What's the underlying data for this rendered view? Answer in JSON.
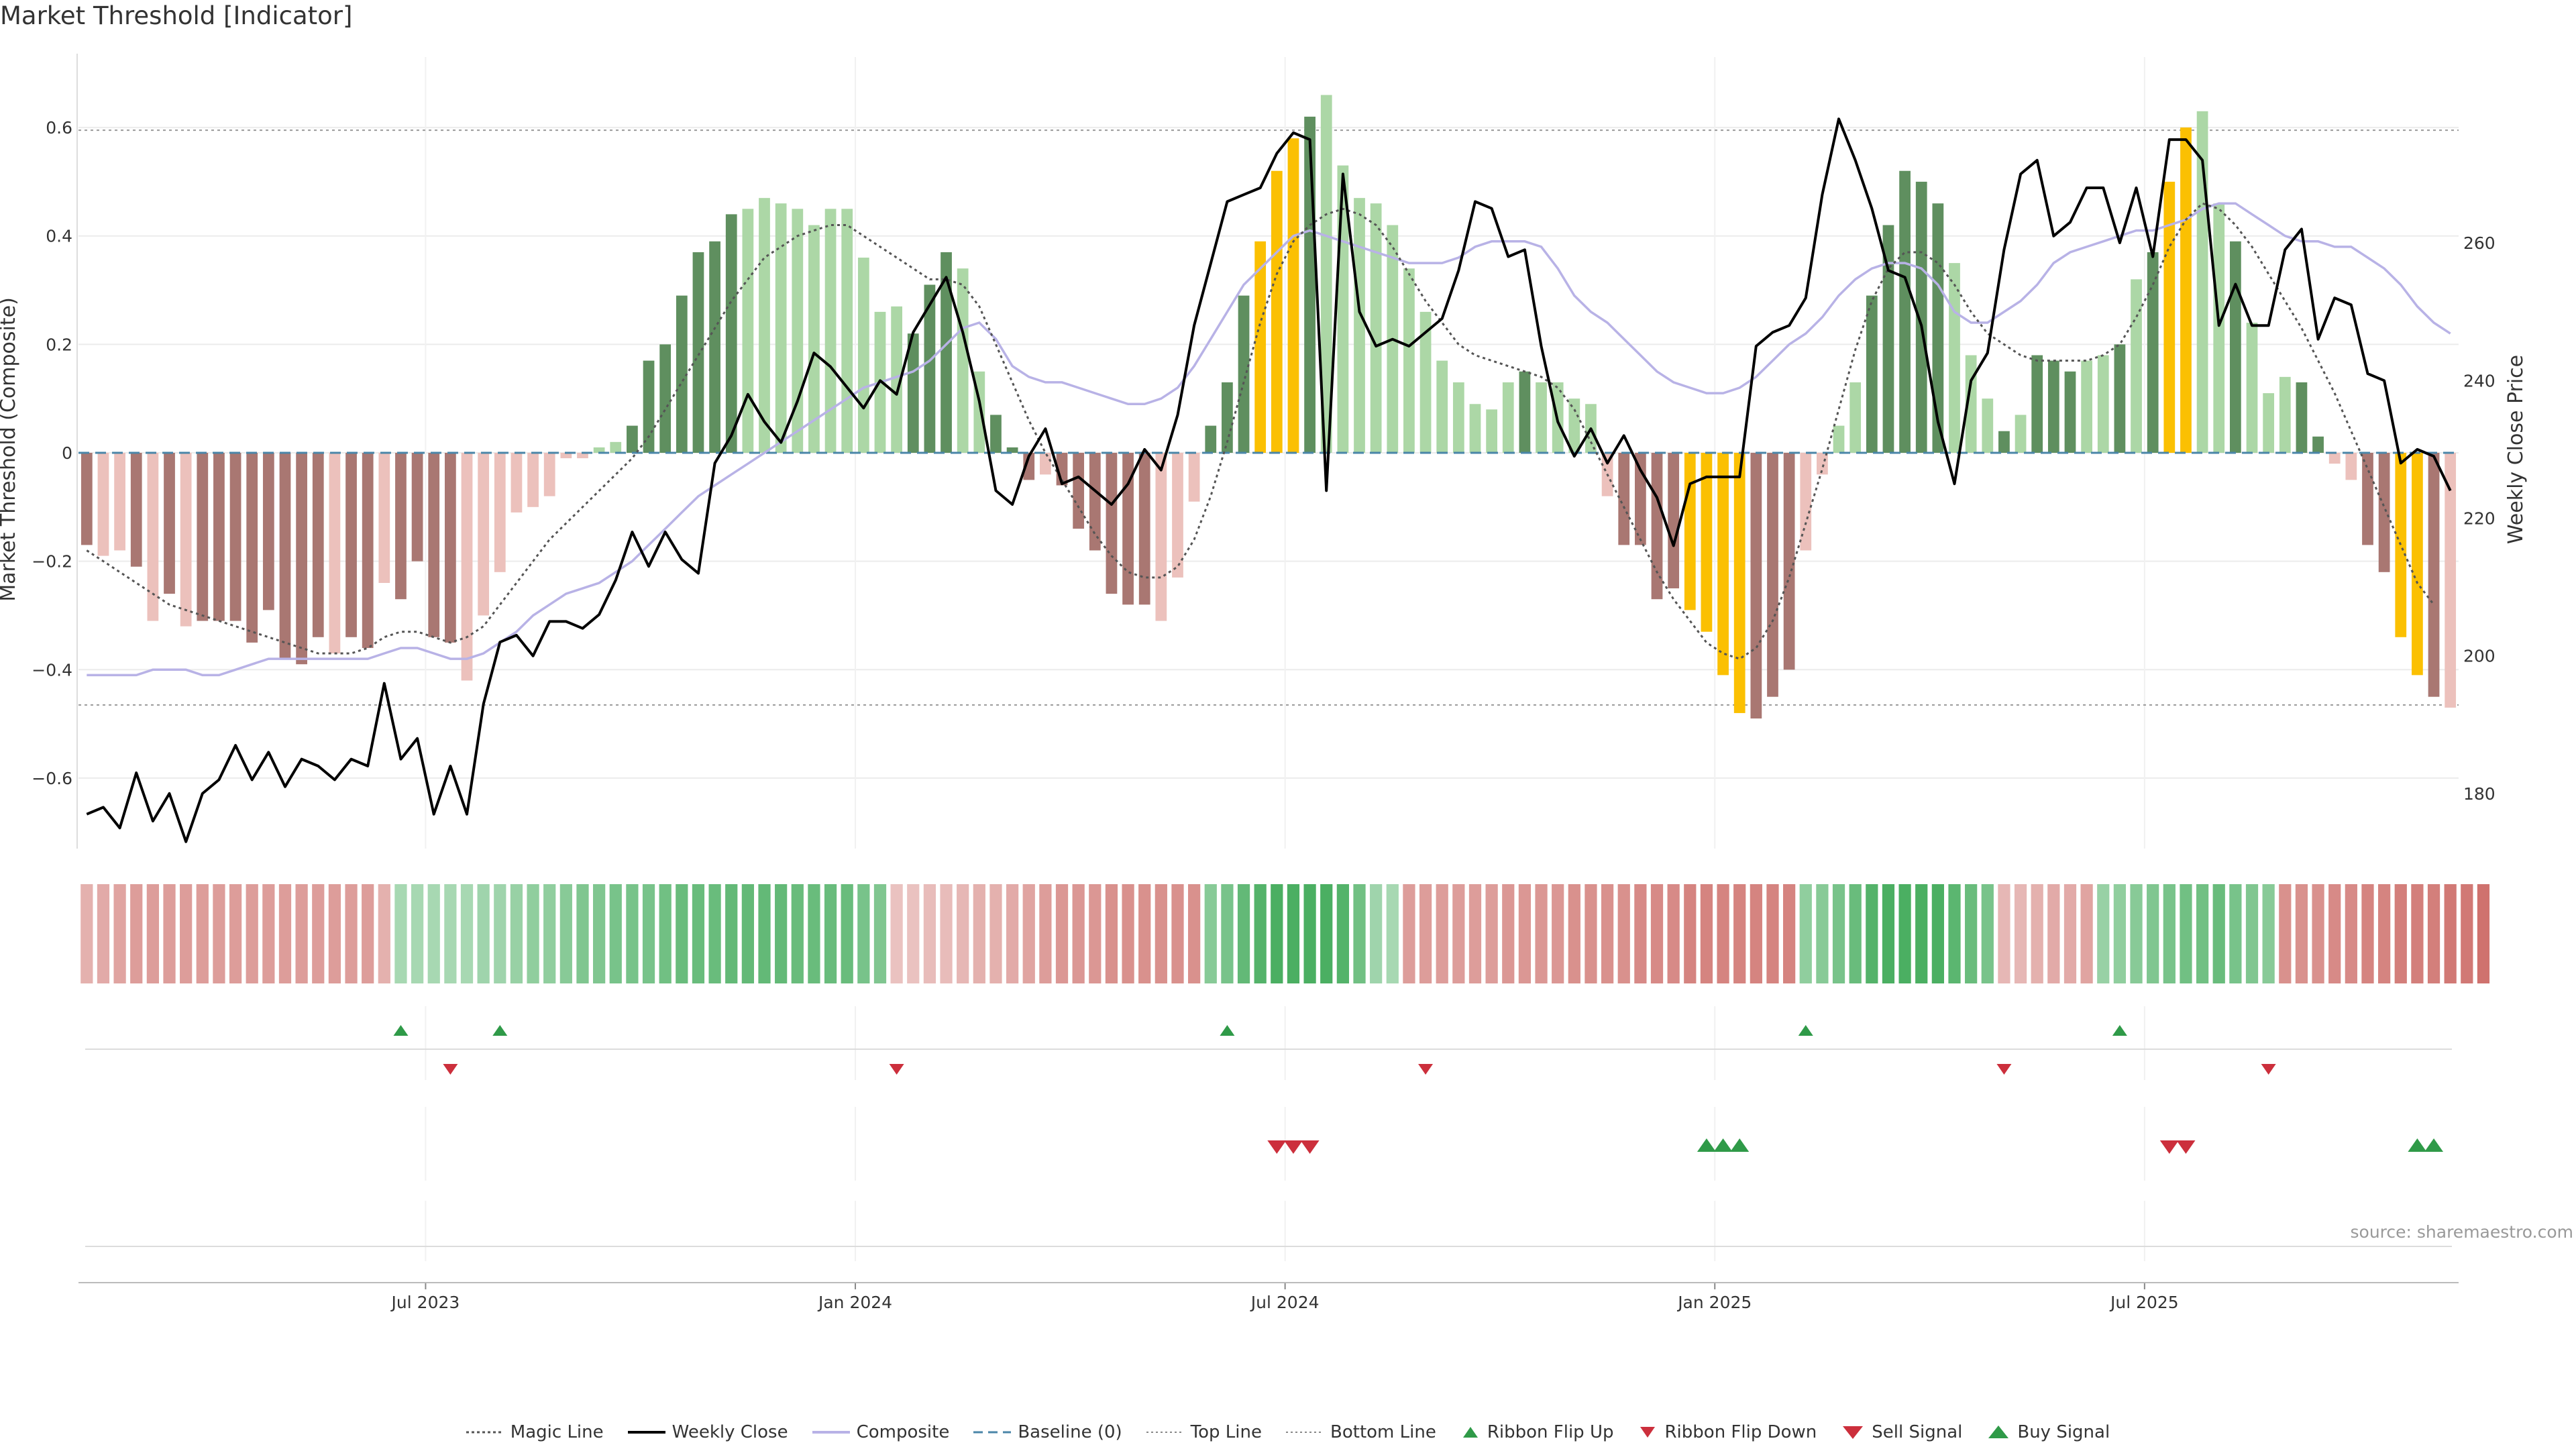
{
  "title": "Market Threshold [Indicator]",
  "source": "source: sharemaestro.com",
  "colors": {
    "gain_dark": "#5f8f5f",
    "gain_light": "#acd7a6",
    "loss_dark": "#a97772",
    "loss_light": "#ecc1bc",
    "extreme": "#fbc002",
    "weekly_close": "#000000",
    "composite": "#b8b2e6",
    "magic": "#555555",
    "sell": "#cc2f3c",
    "buy": "#2f9a48"
  },
  "chart_data": {
    "type": "bar",
    "title": "Market Threshold [Indicator]",
    "ylabel": "Market Threshold (Composite)",
    "y2label": "Weekly Close Price",
    "ylim": [
      -0.73,
      0.73
    ],
    "y2lim": [
      172,
      287
    ],
    "yticks": [
      "0.6",
      "0.4",
      "0.2",
      "0",
      "−0.2",
      "−0.4",
      "−0.6"
    ],
    "y2ticks": [
      "260",
      "240",
      "220",
      "200",
      "180"
    ],
    "xticks": [
      "Jul 2023",
      "Jan 2024",
      "Jul 2024",
      "Jan 2025",
      "Jul 2025"
    ],
    "xtick_weeks": [
      21,
      47,
      73,
      99,
      125
    ],
    "top_line": 0.595,
    "bottom_line": -0.465,
    "grid": true,
    "legend_position": "bottom",
    "composite_bars": [
      -0.17,
      -0.19,
      -0.18,
      -0.21,
      -0.31,
      -0.26,
      -0.32,
      -0.31,
      -0.31,
      -0.31,
      -0.35,
      -0.29,
      -0.38,
      -0.39,
      -0.34,
      -0.37,
      -0.34,
      -0.36,
      -0.24,
      -0.27,
      -0.2,
      -0.34,
      -0.35,
      -0.42,
      -0.3,
      -0.22,
      -0.11,
      -0.1,
      -0.08,
      -0.01,
      -0.01,
      0.01,
      0.02,
      0.05,
      0.17,
      0.2,
      0.29,
      0.37,
      0.39,
      0.44,
      0.45,
      0.47,
      0.46,
      0.45,
      0.42,
      0.45,
      0.45,
      0.36,
      0.26,
      0.27,
      0.22,
      0.31,
      0.37,
      0.34,
      0.15,
      0.07,
      0.01,
      -0.05,
      -0.04,
      -0.06,
      -0.14,
      -0.18,
      -0.26,
      -0.28,
      -0.28,
      -0.31,
      -0.23,
      -0.09,
      0.05,
      0.13,
      0.29,
      0.39,
      0.52,
      0.58,
      0.62,
      0.66,
      0.53,
      0.47,
      0.46,
      0.42,
      0.34,
      0.26,
      0.17,
      0.13,
      0.09,
      0.08,
      0.13,
      0.15,
      0.13,
      0.13,
      0.1,
      0.09,
      -0.08,
      -0.17,
      -0.17,
      -0.27,
      -0.25,
      -0.29,
      -0.33,
      -0.41,
      -0.48,
      -0.49,
      -0.45,
      -0.4,
      -0.18,
      -0.04,
      0.05,
      0.13,
      0.29,
      0.42,
      0.52,
      0.5,
      0.46,
      0.35,
      0.18,
      0.1,
      0.04,
      0.07,
      0.18,
      0.17,
      0.15,
      0.17,
      0.18,
      0.2,
      0.32,
      0.37,
      0.5,
      0.6,
      0.63,
      0.46,
      0.39,
      0.24,
      0.11,
      0.14,
      0.13,
      0.03,
      -0.02,
      -0.05,
      -0.17,
      -0.22,
      -0.34,
      -0.41,
      -0.45,
      -0.47
    ],
    "bar_shade": "dlldldlddddddddlddlddddlllllllllldddddddlllllllllldddlldddlddddddllldddddddlllllllllllldllllldddddddddddlllldddddllldldddlldldddlldlllddllddddd",
    "extreme_weeks": [
      71,
      72,
      73,
      97,
      98,
      99,
      100,
      126,
      127,
      140,
      141
    ],
    "weekly_close": [
      177,
      178,
      175,
      183,
      176,
      180,
      173,
      180,
      182,
      187,
      182,
      186,
      181,
      185,
      184,
      182,
      185,
      184,
      196,
      185,
      188,
      177,
      184,
      177,
      193,
      202,
      203,
      200,
      205,
      205,
      204,
      206,
      211,
      218,
      213,
      218,
      214,
      212,
      228,
      232,
      238,
      234,
      231,
      237,
      244,
      242,
      239,
      236,
      240,
      238,
      247,
      251,
      255,
      247,
      237,
      224,
      222,
      229,
      233,
      225,
      226,
      224,
      222,
      225,
      230,
      227,
      235,
      248,
      257,
      266,
      267,
      268,
      273,
      276,
      275,
      224,
      270,
      250,
      245,
      246,
      245,
      247,
      249,
      256,
      266,
      265,
      258,
      259,
      245,
      234,
      229,
      233,
      228,
      232,
      227,
      223,
      216,
      225,
      226,
      226,
      226,
      245,
      247,
      248,
      252,
      267,
      278,
      272,
      265,
      256,
      255,
      248,
      234,
      225,
      240,
      244,
      259,
      270,
      272,
      261,
      263,
      268,
      268,
      260,
      268,
      258,
      275,
      275,
      272,
      248,
      254,
      248,
      248,
      259,
      262,
      246,
      252,
      251,
      241,
      240,
      228,
      230,
      229,
      224
    ],
    "composite_line": [
      -0.41,
      -0.41,
      -0.41,
      -0.41,
      -0.4,
      -0.4,
      -0.4,
      -0.41,
      -0.41,
      -0.4,
      -0.39,
      -0.38,
      -0.38,
      -0.38,
      -0.38,
      -0.38,
      -0.38,
      -0.38,
      -0.37,
      -0.36,
      -0.36,
      -0.37,
      -0.38,
      -0.38,
      -0.37,
      -0.35,
      -0.33,
      -0.3,
      -0.28,
      -0.26,
      -0.25,
      -0.24,
      -0.22,
      -0.2,
      -0.17,
      -0.14,
      -0.11,
      -0.08,
      -0.06,
      -0.04,
      -0.02,
      0.0,
      0.02,
      0.04,
      0.06,
      0.08,
      0.1,
      0.12,
      0.13,
      0.14,
      0.15,
      0.17,
      0.2,
      0.23,
      0.24,
      0.21,
      0.16,
      0.14,
      0.13,
      0.13,
      0.12,
      0.11,
      0.1,
      0.09,
      0.09,
      0.1,
      0.12,
      0.16,
      0.21,
      0.26,
      0.31,
      0.34,
      0.37,
      0.4,
      0.41,
      0.4,
      0.39,
      0.38,
      0.37,
      0.36,
      0.35,
      0.35,
      0.35,
      0.36,
      0.38,
      0.39,
      0.39,
      0.39,
      0.38,
      0.34,
      0.29,
      0.26,
      0.24,
      0.21,
      0.18,
      0.15,
      0.13,
      0.12,
      0.11,
      0.11,
      0.12,
      0.14,
      0.17,
      0.2,
      0.22,
      0.25,
      0.29,
      0.32,
      0.34,
      0.35,
      0.35,
      0.34,
      0.31,
      0.26,
      0.24,
      0.24,
      0.26,
      0.28,
      0.31,
      0.35,
      0.37,
      0.38,
      0.39,
      0.4,
      0.41,
      0.41,
      0.42,
      0.43,
      0.45,
      0.46,
      0.46,
      0.44,
      0.42,
      0.4,
      0.39,
      0.39,
      0.38,
      0.38,
      0.36,
      0.34,
      0.31,
      0.27,
      0.24,
      0.22
    ],
    "magic_line": [
      -0.18,
      -0.2,
      -0.22,
      -0.24,
      -0.26,
      -0.28,
      -0.29,
      -0.3,
      -0.31,
      -0.32,
      -0.33,
      -0.34,
      -0.35,
      -0.36,
      -0.37,
      -0.37,
      -0.37,
      -0.36,
      -0.34,
      -0.33,
      -0.33,
      -0.34,
      -0.35,
      -0.34,
      -0.32,
      -0.28,
      -0.24,
      -0.2,
      -0.16,
      -0.13,
      -0.1,
      -0.07,
      -0.04,
      -0.01,
      0.03,
      0.08,
      0.13,
      0.18,
      0.23,
      0.28,
      0.32,
      0.36,
      0.38,
      0.4,
      0.41,
      0.42,
      0.42,
      0.4,
      0.38,
      0.36,
      0.34,
      0.32,
      0.32,
      0.31,
      0.27,
      0.2,
      0.13,
      0.06,
      0.0,
      -0.05,
      -0.1,
      -0.15,
      -0.19,
      -0.22,
      -0.23,
      -0.23,
      -0.21,
      -0.16,
      -0.08,
      0.02,
      0.13,
      0.24,
      0.33,
      0.39,
      0.42,
      0.44,
      0.45,
      0.44,
      0.42,
      0.38,
      0.33,
      0.28,
      0.24,
      0.2,
      0.18,
      0.17,
      0.16,
      0.15,
      0.14,
      0.12,
      0.08,
      0.02,
      -0.04,
      -0.1,
      -0.16,
      -0.22,
      -0.27,
      -0.31,
      -0.35,
      -0.37,
      -0.38,
      -0.36,
      -0.31,
      -0.23,
      -0.13,
      -0.03,
      0.08,
      0.19,
      0.28,
      0.34,
      0.37,
      0.37,
      0.35,
      0.31,
      0.26,
      0.22,
      0.2,
      0.18,
      0.17,
      0.17,
      0.17,
      0.17,
      0.18,
      0.2,
      0.25,
      0.31,
      0.38,
      0.43,
      0.46,
      0.45,
      0.42,
      0.38,
      0.33,
      0.28,
      0.23,
      0.17,
      0.11,
      0.04,
      -0.03,
      -0.1,
      -0.17,
      -0.24,
      -0.28
    ],
    "ribbon_levels": [
      -0.35,
      -0.4,
      -0.45,
      -0.5,
      -0.5,
      -0.5,
      -0.5,
      -0.5,
      -0.5,
      -0.5,
      -0.5,
      -0.5,
      -0.5,
      -0.5,
      -0.5,
      -0.5,
      -0.5,
      -0.5,
      -0.35,
      0.3,
      0.3,
      0.3,
      0.3,
      0.3,
      0.35,
      0.35,
      0.4,
      0.45,
      0.45,
      0.5,
      0.55,
      0.55,
      0.6,
      0.6,
      0.6,
      0.65,
      0.7,
      0.7,
      0.7,
      0.75,
      0.75,
      0.75,
      0.75,
      0.7,
      0.7,
      0.7,
      0.7,
      0.6,
      0.55,
      -0.2,
      -0.2,
      -0.25,
      -0.25,
      -0.3,
      -0.35,
      -0.35,
      -0.4,
      -0.45,
      -0.5,
      -0.55,
      -0.55,
      -0.55,
      -0.6,
      -0.6,
      -0.6,
      -0.6,
      -0.6,
      -0.6,
      0.5,
      0.6,
      0.75,
      0.85,
      0.9,
      0.9,
      0.9,
      0.9,
      0.85,
      0.65,
      0.35,
      0.3,
      -0.5,
      -0.5,
      -0.5,
      -0.5,
      -0.5,
      -0.5,
      -0.55,
      -0.55,
      -0.55,
      -0.55,
      -0.6,
      -0.6,
      -0.6,
      -0.6,
      -0.65,
      -0.65,
      -0.65,
      -0.7,
      -0.7,
      -0.7,
      -0.7,
      -0.7,
      -0.7,
      -0.7,
      0.45,
      0.5,
      0.6,
      0.7,
      0.85,
      0.9,
      0.9,
      0.9,
      0.9,
      0.8,
      0.7,
      0.6,
      -0.3,
      -0.3,
      -0.35,
      -0.4,
      -0.4,
      -0.45,
      0.4,
      0.45,
      0.5,
      0.55,
      0.6,
      0.65,
      0.65,
      0.7,
      0.6,
      0.55,
      0.5,
      -0.6,
      -0.6,
      -0.6,
      -0.65,
      -0.65,
      -0.7,
      -0.7,
      -0.75,
      -0.75,
      -0.75,
      -0.8,
      -0.8,
      -0.85
    ],
    "ribbon_flip_up": [
      19,
      25,
      69,
      104,
      123
    ],
    "ribbon_flip_down": [
      22,
      49,
      81,
      116,
      132
    ],
    "sell_signal": [
      72,
      73,
      74,
      126,
      127
    ],
    "buy_signal": [
      98,
      99,
      100,
      141,
      142
    ]
  },
  "legend": [
    {
      "label": "Magic Line",
      "icon": "dotted-line-icon"
    },
    {
      "label": "Weekly Close",
      "icon": "solid-line-icon"
    },
    {
      "label": "Composite",
      "icon": "lavender-line-icon"
    },
    {
      "label": "Baseline (0)",
      "icon": "dashed-line-icon"
    },
    {
      "label": "Top Line",
      "icon": "dotted-line-icon"
    },
    {
      "label": "Bottom Line",
      "icon": "dotted-line-icon"
    },
    {
      "label": "Ribbon Flip Up",
      "icon": "triangle-up-icon"
    },
    {
      "label": "Ribbon Flip Down",
      "icon": "triangle-down-icon"
    },
    {
      "label": "Sell Signal",
      "icon": "triangle-down-icon"
    },
    {
      "label": "Buy Signal",
      "icon": "triangle-up-icon"
    }
  ]
}
